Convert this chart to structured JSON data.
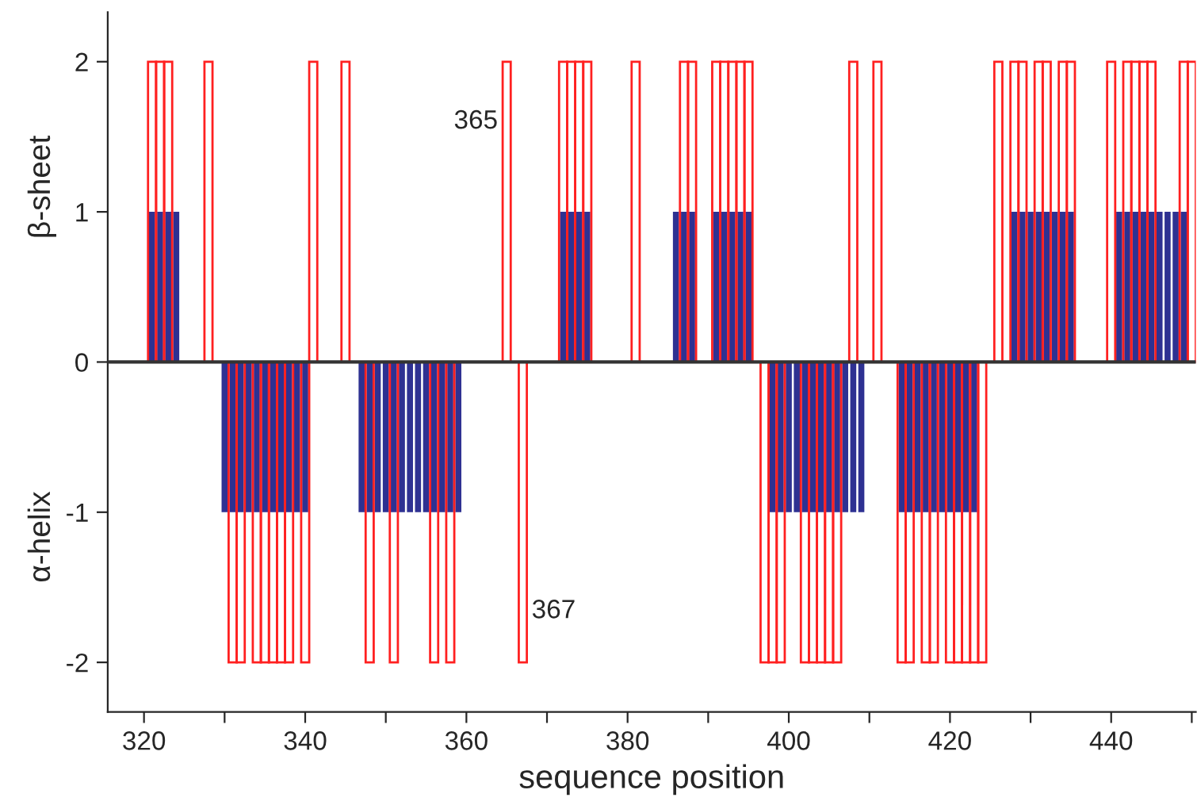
{
  "chart_data": {
    "type": "bar",
    "xlabel": "sequence position",
    "annotations": [
      "β-sheet",
      "α-helix",
      {
        "text": "365",
        "x": 365,
        "y": 1.6
      },
      {
        "text": "367",
        "x": 367,
        "y": -1.66
      }
    ],
    "series": [
      {
        "color": "#2e3192",
        "x": [
          321,
          322,
          323,
          324,
          330,
          331,
          332,
          333,
          334,
          335,
          336,
          337,
          338,
          339,
          340,
          347,
          348,
          349,
          350,
          351,
          352,
          353,
          354,
          355,
          356,
          357,
          358,
          359,
          372,
          373,
          374,
          375,
          386,
          387,
          388,
          391,
          392,
          393,
          394,
          395,
          398,
          399,
          400,
          401,
          402,
          403,
          404,
          405,
          406,
          407,
          408,
          409,
          414,
          415,
          416,
          417,
          418,
          419,
          420,
          421,
          422,
          423,
          428,
          429,
          430,
          431,
          432,
          433,
          434,
          435,
          441,
          442,
          443,
          444,
          445,
          446,
          447,
          448,
          449
        ],
        "values": [
          1,
          1,
          1,
          1,
          -1,
          -1,
          -1,
          -1,
          -1,
          -1,
          -1,
          -1,
          -1,
          -1,
          -1,
          -1,
          -1,
          -1,
          -1,
          -1,
          -1,
          -1,
          -1,
          -1,
          -1,
          -1,
          -1,
          -1,
          1,
          1,
          1,
          1,
          1,
          1,
          1,
          1,
          1,
          1,
          1,
          1,
          -1,
          -1,
          -1,
          -1,
          -1,
          -1,
          -1,
          -1,
          -1,
          -1,
          -1,
          -1,
          -1,
          -1,
          -1,
          -1,
          -1,
          -1,
          -1,
          -1,
          -1,
          -1,
          1,
          1,
          1,
          1,
          1,
          1,
          1,
          1,
          1,
          1,
          1,
          1,
          1,
          1,
          1,
          1,
          1
        ]
      },
      {
        "color": "#ff2020",
        "x": [
          321,
          322,
          323,
          328,
          331,
          332,
          334,
          335,
          336,
          337,
          338,
          340,
          341,
          345,
          348,
          351,
          356,
          358,
          365,
          367,
          372,
          373,
          374,
          375,
          381,
          387,
          388,
          391,
          392,
          393,
          394,
          395,
          397,
          398,
          399,
          402,
          403,
          404,
          405,
          406,
          408,
          411,
          414,
          415,
          417,
          418,
          420,
          421,
          422,
          423,
          424,
          426,
          428,
          429,
          431,
          432,
          434,
          435,
          440,
          442,
          443,
          444,
          445,
          449,
          450
        ],
        "values": [
          2,
          2,
          2,
          2,
          -2,
          -2,
          -2,
          -2,
          -2,
          -2,
          -2,
          -2,
          2,
          2,
          -2,
          -2,
          -2,
          -2,
          2,
          -2,
          2,
          2,
          2,
          2,
          2,
          2,
          2,
          2,
          2,
          2,
          2,
          2,
          -2,
          -2,
          -2,
          -2,
          -2,
          -2,
          -2,
          -2,
          2,
          2,
          -2,
          -2,
          -2,
          -2,
          -2,
          -2,
          -2,
          -2,
          -2,
          2,
          2,
          2,
          2,
          2,
          2,
          2,
          2,
          2,
          2,
          2,
          2,
          2,
          2
        ]
      }
    ],
    "xlim": [
      315.5,
      450.5
    ],
    "xticks": [
      320,
      {
        "value": 330,
        "label": null
      },
      340,
      {
        "value": 350,
        "label": null
      },
      360,
      {
        "value": 370,
        "label": null
      },
      380,
      {
        "value": 390,
        "label": null
      },
      400,
      {
        "value": 410,
        "label": null
      },
      420,
      {
        "value": 430,
        "label": null
      },
      440,
      {
        "value": 450,
        "label": null
      }
    ],
    "ylim": [
      -2.33,
      2.33
    ],
    "yticks": [
      -2,
      -1,
      0,
      1,
      2
    ],
    "ref_lines": [
      {
        "axis": "y",
        "value": 0,
        "color": "#333333"
      }
    ],
    "grid": false,
    "legend": false
  }
}
